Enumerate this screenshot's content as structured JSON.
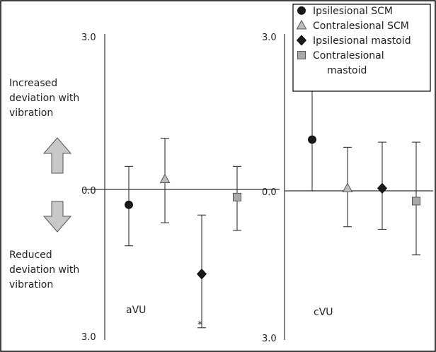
{
  "chart_data": [
    {
      "type": "scatter",
      "name": "aVU",
      "label": "aVU",
      "ylim": [
        -3.0,
        3.0
      ],
      "y_ticks": [
        "3.0",
        "0.0",
        "3.0"
      ],
      "annotation": "*",
      "up_label": "Increased deviation with vibration",
      "down_label": "Reduced deviation with vibration",
      "points": [
        {
          "series": "Ipsilesional SCM",
          "marker": "circle",
          "y": -0.3,
          "err_low": -1.1,
          "err_high": 0.45
        },
        {
          "series": "Contralesional SCM",
          "marker": "triangle",
          "y": 0.2,
          "err_low": -0.65,
          "err_high": 1.0
        },
        {
          "series": "Ipsilesional mastoid",
          "marker": "diamond",
          "y": -1.65,
          "err_low": -2.7,
          "err_high": -0.5
        },
        {
          "series": "Contralesional mastoid",
          "marker": "square",
          "y": -0.15,
          "err_low": -0.8,
          "err_high": 0.45
        }
      ]
    },
    {
      "type": "scatter",
      "name": "cVU",
      "label": "cVU",
      "ylim": [
        -3.0,
        3.0
      ],
      "y_ticks": [
        "3.0",
        "0.0",
        "3.0"
      ],
      "points": [
        {
          "series": "Ipsilesional SCM",
          "marker": "circle",
          "y": 1.0,
          "err_low": 0.0,
          "err_high": 1.95
        },
        {
          "series": "Contralesional SCM",
          "marker": "triangle",
          "y": 0.05,
          "err_low": -0.7,
          "err_high": 0.85
        },
        {
          "series": "Ipsilesional mastoid",
          "marker": "diamond",
          "y": 0.05,
          "err_low": -0.75,
          "err_high": 0.95
        },
        {
          "series": "Contralesional mastoid",
          "marker": "square",
          "y": -0.2,
          "err_low": -1.25,
          "err_high": 0.95
        }
      ]
    }
  ],
  "legend": {
    "placement": "top-right",
    "entries": [
      {
        "label": "Ipsilesional SCM",
        "marker": "circle"
      },
      {
        "label": "Contralesional SCM",
        "marker": "triangle"
      },
      {
        "label": "Ipsilesional mastoid",
        "marker": "diamond"
      },
      {
        "label": "Contralesional mastoid",
        "marker": "square"
      }
    ]
  },
  "colors": {
    "circle": "#1a1a1a",
    "triangle": "#bdbdbd",
    "diamond": "#1a1a1a",
    "square": "#a9a9a9",
    "arrow_fill": "#c8c8c8",
    "frame": "#000000"
  }
}
